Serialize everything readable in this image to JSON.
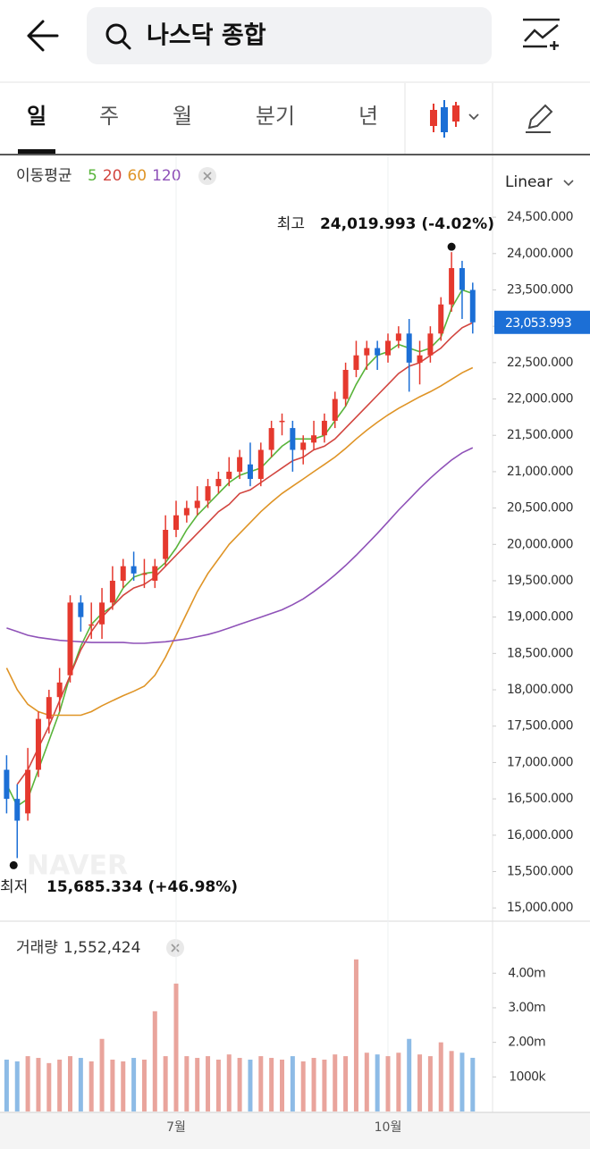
{
  "header": {
    "search_text": "나스닥 종합"
  },
  "tabs": [
    "일",
    "주",
    "월",
    "분기",
    "년"
  ],
  "chart_data": {
    "type": "candlestick",
    "scale": "Linear",
    "ma_title": "이동평균",
    "watermark": "NAVER",
    "categories": [
      null,
      null,
      null,
      null,
      null,
      null,
      null,
      null,
      null,
      null,
      null,
      null,
      null,
      null,
      null,
      null,
      "7월",
      null,
      null,
      null,
      null,
      null,
      null,
      null,
      null,
      null,
      null,
      null,
      null,
      null,
      null,
      null,
      null,
      null,
      null,
      null,
      "10월",
      null,
      null,
      null,
      null,
      null,
      null,
      null,
      null
    ],
    "open": [
      16900,
      16500,
      16300,
      16900,
      17600,
      17900,
      18200,
      19200,
      18900,
      18900,
      19200,
      19500,
      19700,
      19600,
      19500,
      19800,
      20200,
      20400,
      20500,
      20600,
      20800,
      20900,
      21000,
      21100,
      20900,
      21300,
      21700,
      21600,
      21300,
      21400,
      21500,
      21700,
      22000,
      22400,
      22600,
      22700,
      22600,
      22800,
      22900,
      22500,
      22600,
      22900,
      23300,
      23800,
      23500
    ],
    "high": [
      17100,
      16700,
      17200,
      17700,
      18000,
      18300,
      19300,
      19300,
      19200,
      19400,
      19700,
      19800,
      19900,
      19800,
      19800,
      20400,
      20600,
      20600,
      20800,
      20900,
      21000,
      21200,
      21300,
      21400,
      21400,
      21700,
      21800,
      21700,
      21500,
      21700,
      21800,
      22100,
      22500,
      22800,
      22800,
      22800,
      22900,
      23000,
      23100,
      22800,
      23000,
      23400,
      24019.993,
      23900,
      23600
    ],
    "low": [
      16300,
      15685.334,
      16200,
      16800,
      17400,
      17700,
      18100,
      18800,
      18700,
      18700,
      19100,
      19400,
      19500,
      19400,
      19400,
      19700,
      20100,
      20300,
      20400,
      20500,
      20700,
      20800,
      20900,
      20800,
      20800,
      21200,
      21500,
      21000,
      21100,
      21300,
      21400,
      21600,
      21900,
      22300,
      22400,
      22400,
      22500,
      22700,
      22100,
      22200,
      22500,
      22800,
      23200,
      23100,
      22900
    ],
    "close": [
      16500,
      16200,
      16900,
      17600,
      17900,
      18100,
      19200,
      19000,
      18900,
      19200,
      19500,
      19700,
      19600,
      19600,
      19700,
      20200,
      20400,
      20500,
      20600,
      20800,
      20900,
      21000,
      21200,
      20900,
      21300,
      21600,
      21700,
      21300,
      21400,
      21500,
      21700,
      22000,
      22400,
      22600,
      22700,
      22600,
      22800,
      22900,
      22500,
      22600,
      22900,
      23300,
      23800,
      23500,
      23053.993
    ],
    "up_color": "#e5392e",
    "down_color": "#1c6fd6",
    "ylim": [
      14830,
      25300
    ],
    "yticks": [
      {
        "value": 15000,
        "label": "15,000.000"
      },
      {
        "value": 15500,
        "label": "15,500.000"
      },
      {
        "value": 16000,
        "label": "16,000.000"
      },
      {
        "value": 16500,
        "label": "16,500.000"
      },
      {
        "value": 17000,
        "label": "17,000.000"
      },
      {
        "value": 17500,
        "label": "17,500.000"
      },
      {
        "value": 18000,
        "label": "18,000.000"
      },
      {
        "value": 18500,
        "label": "18,500.000"
      },
      {
        "value": 19000,
        "label": "19,000.000"
      },
      {
        "value": 19500,
        "label": "19,500.000"
      },
      {
        "value": 20000,
        "label": "20,000.000"
      },
      {
        "value": 20500,
        "label": "20,500.000"
      },
      {
        "value": 21000,
        "label": "21,000.000"
      },
      {
        "value": 21500,
        "label": "21,500.000"
      },
      {
        "value": 22000,
        "label": "22,000.000"
      },
      {
        "value": 22500,
        "label": "22,500.000"
      },
      {
        "value": 23000,
        "label": "23,000.000"
      },
      {
        "value": 23500,
        "label": "23,500.000"
      },
      {
        "value": 24000,
        "label": "24,000.000"
      },
      {
        "value": 24500,
        "label": "24,500.000"
      }
    ],
    "last_price": {
      "value": 23053.993,
      "label": "23,053.993"
    },
    "high_mark": {
      "title": "최고",
      "value": 24019.993,
      "label": "24,019.993 (-4.02%)"
    },
    "low_mark": {
      "title": "최저",
      "value": 15685.334,
      "label": "15,685.334 (+46.98%)"
    },
    "moving_averages": [
      {
        "name": "5",
        "color": "#58b43a",
        "values": [
          16700,
          16400,
          16500,
          16900,
          17300,
          17700,
          18200,
          18600,
          18900,
          19050,
          19150,
          19400,
          19550,
          19600,
          19620,
          19750,
          19950,
          20200,
          20400,
          20550,
          20700,
          20850,
          20950,
          21000,
          21050,
          21200,
          21350,
          21450,
          21450,
          21450,
          21500,
          21700,
          21900,
          22200,
          22450,
          22600,
          22650,
          22750,
          22700,
          22650,
          22700,
          22850,
          23250,
          23500,
          23450
        ]
      },
      {
        "name": "20",
        "color": "#d2453f",
        "values": [
          null,
          16700,
          16900,
          17200,
          17500,
          17850,
          18200,
          18550,
          18800,
          19000,
          19150,
          19300,
          19400,
          19450,
          19550,
          19700,
          19850,
          20000,
          20150,
          20300,
          20450,
          20550,
          20700,
          20750,
          20850,
          20950,
          21050,
          21150,
          21200,
          21300,
          21350,
          21450,
          21600,
          21750,
          21900,
          22050,
          22200,
          22350,
          22450,
          22500,
          22600,
          22700,
          22850,
          22980,
          23050
        ]
      },
      {
        "name": "60",
        "color": "#df9426",
        "values": [
          18300,
          18000,
          17800,
          17700,
          17650,
          17650,
          17650,
          17650,
          17700,
          17780,
          17850,
          17920,
          17980,
          18050,
          18200,
          18450,
          18750,
          19050,
          19350,
          19600,
          19800,
          20000,
          20150,
          20300,
          20450,
          20580,
          20700,
          20800,
          20900,
          21000,
          21100,
          21200,
          21320,
          21450,
          21570,
          21680,
          21780,
          21870,
          21950,
          22030,
          22100,
          22180,
          22270,
          22360,
          22430
        ]
      },
      {
        "name": "120",
        "color": "#8f52b8",
        "values": [
          18850,
          18800,
          18750,
          18720,
          18700,
          18680,
          18670,
          18660,
          18650,
          18650,
          18650,
          18650,
          18640,
          18640,
          18650,
          18660,
          18680,
          18700,
          18730,
          18760,
          18800,
          18850,
          18900,
          18950,
          19000,
          19050,
          19100,
          19170,
          19250,
          19350,
          19460,
          19580,
          19710,
          19850,
          20000,
          20150,
          20310,
          20470,
          20620,
          20770,
          20910,
          21040,
          21160,
          21260,
          21330
        ]
      }
    ],
    "volume": {
      "title": "거래량",
      "current": {
        "value": 1552424,
        "label": "1,552,424"
      },
      "up_color": "#e9a49c",
      "down_color": "#8dbbe6",
      "values": [
        1500000,
        1450000,
        1600000,
        1550000,
        1400000,
        1500000,
        1600000,
        1550000,
        1450000,
        2100000,
        1500000,
        1450000,
        1550000,
        1500000,
        2900000,
        1600000,
        3700000,
        1600000,
        1550000,
        1600000,
        1500000,
        1650000,
        1550000,
        1500000,
        1600000,
        1550000,
        1500000,
        1600000,
        1450000,
        1550000,
        1500000,
        1650000,
        1600000,
        4400000,
        1700000,
        1650000,
        1600000,
        1700000,
        2100000,
        1650000,
        1600000,
        2000000,
        1750000,
        1700000,
        1552424
      ],
      "ylim": [
        0,
        5480000
      ],
      "yticks": [
        {
          "value": 1000000,
          "label": "1000k"
        },
        {
          "value": 2000000,
          "label": "2.00m"
        },
        {
          "value": 3000000,
          "label": "3.00m"
        },
        {
          "value": 4000000,
          "label": "4.00m"
        }
      ]
    }
  }
}
